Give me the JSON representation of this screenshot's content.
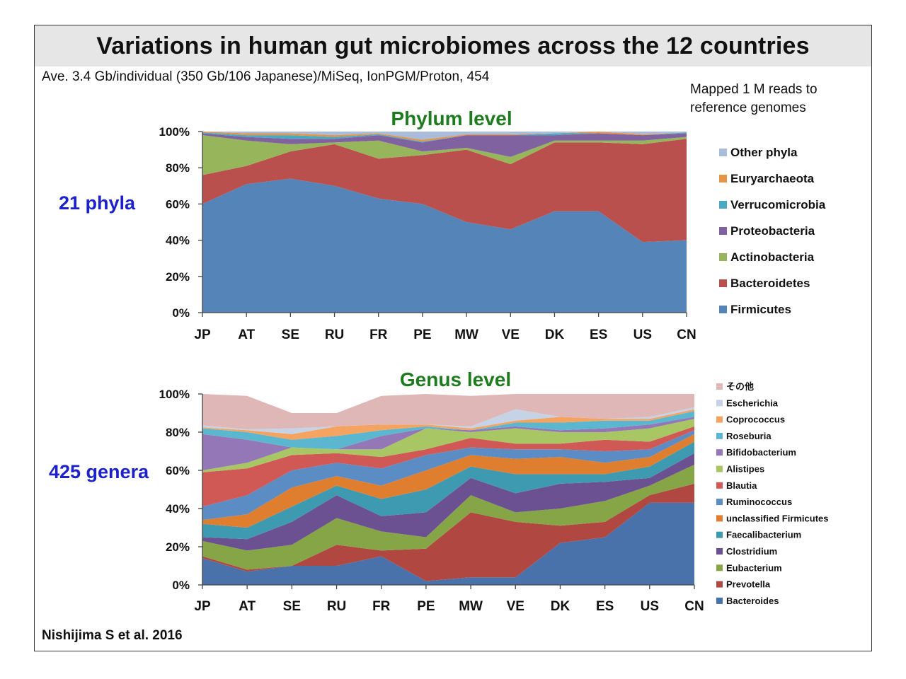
{
  "slide": {
    "title": "Variations in human gut microbiomes across the 12 countries",
    "subtitle": "Ave. 3.4 Gb/individual (350 Gb/106 Japanese)/MiSeq, IonPGM/Proton, 454",
    "note": "Mapped 1 M reads to\nreference genomes",
    "credit": "Nishijima S et al. 2016",
    "phylum_side_label": "21 phyla",
    "genus_side_label": "425 genera"
  },
  "chart_data": [
    {
      "type": "area",
      "stacked": true,
      "title": "Phylum level",
      "title_color": "#1e7b1e",
      "categories": [
        "JP",
        "AT",
        "SE",
        "RU",
        "FR",
        "PE",
        "MW",
        "VE",
        "DK",
        "ES",
        "US",
        "CN"
      ],
      "ylim": [
        0,
        100
      ],
      "yticks": [
        "0%",
        "20%",
        "40%",
        "60%",
        "80%",
        "100%"
      ],
      "grid": false,
      "legend_position": "right",
      "series": [
        {
          "name": "Firmicutes",
          "color": "#5585b8",
          "values": [
            60,
            71,
            74,
            70,
            63,
            60,
            50,
            46,
            56,
            56,
            39,
            40
          ]
        },
        {
          "name": "Bacteroidetes",
          "color": "#b9504d",
          "values": [
            16,
            10,
            15,
            23,
            22,
            27,
            40,
            36,
            38,
            38,
            54,
            56
          ]
        },
        {
          "name": "Actinobacteria",
          "color": "#97b65b",
          "values": [
            22,
            14,
            4,
            1,
            10,
            2,
            1,
            4,
            1,
            1,
            2,
            1
          ]
        },
        {
          "name": "Proteobacteria",
          "color": "#8062a0",
          "values": [
            1,
            2,
            3,
            2,
            3,
            5,
            7,
            12,
            3,
            4,
            3,
            2
          ]
        },
        {
          "name": "Verrucomicrobia",
          "color": "#49a9c1",
          "values": [
            0.5,
            1,
            2,
            1,
            0.5,
            0.5,
            0,
            0,
            1,
            0,
            0,
            0.5
          ]
        },
        {
          "name": "Euryarchaeota",
          "color": "#e69445",
          "values": [
            0.5,
            1,
            1,
            1,
            0.5,
            1,
            0.5,
            0.5,
            0,
            1,
            0.5,
            0
          ]
        },
        {
          "name": "Other phyla",
          "color": "#a9bcd9",
          "values": [
            0,
            1,
            1,
            2,
            1,
            4.5,
            1.5,
            1.5,
            1,
            0,
            1.5,
            0.5
          ]
        }
      ]
    },
    {
      "type": "area",
      "stacked": true,
      "title": "Genus level",
      "title_color": "#1e7b1e",
      "categories": [
        "JP",
        "AT",
        "SE",
        "RU",
        "FR",
        "PE",
        "MW",
        "VE",
        "DK",
        "ES",
        "US",
        "CN"
      ],
      "ylim": [
        0,
        100
      ],
      "yticks": [
        "0%",
        "20%",
        "40%",
        "60%",
        "80%",
        "100%"
      ],
      "grid": false,
      "legend_position": "right",
      "series": [
        {
          "name": "Bacteroides",
          "color": "#4a72aa",
          "values": [
            14,
            7,
            10,
            10,
            15,
            2,
            4,
            4,
            22,
            25,
            43,
            43
          ]
        },
        {
          "name": "Prevotella",
          "color": "#b14741",
          "values": [
            1,
            1,
            0,
            11,
            3,
            17,
            34,
            29,
            9,
            8,
            4,
            10
          ]
        },
        {
          "name": "Eubacterium",
          "color": "#86a547",
          "values": [
            8,
            10,
            11,
            14,
            10,
            6,
            9,
            5,
            9,
            11,
            5,
            10
          ]
        },
        {
          "name": "Clostridium",
          "color": "#6c5192",
          "values": [
            2,
            6,
            12,
            12,
            8,
            13,
            9,
            10,
            13,
            10,
            4,
            6
          ]
        },
        {
          "name": "Faecalibacterium",
          "color": "#3d9ab0",
          "values": [
            7,
            6,
            8,
            5,
            9,
            12,
            6,
            10,
            5,
            4,
            6,
            6
          ]
        },
        {
          "name": "unclassified Firmicutes",
          "color": "#e07e2f",
          "values": [
            2,
            7,
            10,
            5,
            7,
            10,
            6,
            8,
            9,
            6,
            5,
            4
          ]
        },
        {
          "name": "Ruminococcus",
          "color": "#5c8cc4",
          "values": [
            7,
            10,
            9,
            7,
            9,
            8,
            4,
            5,
            4,
            6,
            4,
            2
          ]
        },
        {
          "name": "Blautia",
          "color": "#d05955",
          "values": [
            18,
            14,
            8,
            5,
            6,
            3,
            5,
            3,
            3,
            6,
            4,
            2
          ]
        },
        {
          "name": "Alistipes",
          "color": "#a9c665",
          "values": [
            1,
            3,
            4,
            2,
            4,
            11,
            3,
            8,
            6,
            4,
            7,
            4
          ]
        },
        {
          "name": "Bifidobacterium",
          "color": "#9477b6",
          "values": [
            19,
            12,
            0,
            0,
            7,
            0,
            1,
            1,
            1,
            2,
            2,
            1
          ]
        },
        {
          "name": "Roseburia",
          "color": "#5ab7cf",
          "values": [
            3,
            4,
            4,
            7,
            3,
            1,
            0,
            2,
            4,
            4,
            2,
            3
          ]
        },
        {
          "name": "Coprococcus",
          "color": "#f4a460",
          "values": [
            0.5,
            1,
            3,
            5,
            3,
            1,
            1,
            1,
            3,
            1,
            1,
            1
          ]
        },
        {
          "name": "Escherichia",
          "color": "#c6d3e6",
          "values": [
            1,
            0.5,
            3,
            0,
            0,
            0,
            1,
            6,
            0,
            0,
            1,
            1
          ]
        },
        {
          "name": "その他",
          "color": "#dfb7b7",
          "values": [
            16.5,
            17.5,
            8,
            7,
            15,
            16,
            16,
            8,
            12,
            13,
            12,
            7
          ]
        }
      ]
    }
  ]
}
